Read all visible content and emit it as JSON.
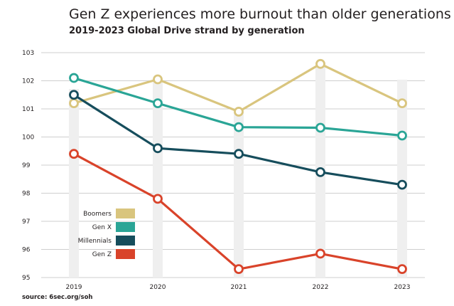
{
  "chart_data": {
    "type": "line",
    "title": "Gen Z experiences more burnout than older generations",
    "subtitle": "2019-2023 Global Drive strand by generation",
    "source": "source: 6sec.org/soh",
    "categories": [
      "2019",
      "2020",
      "2021",
      "2022",
      "2023"
    ],
    "ylim": [
      95,
      103
    ],
    "yticks": [
      "95",
      "96",
      "97",
      "98",
      "99",
      "100",
      "101",
      "102",
      "103"
    ],
    "grid": true,
    "legend_placement": "lower-left",
    "series": [
      {
        "name": "Boomers",
        "color": "#d9c57e",
        "values": [
          101.2,
          102.05,
          100.9,
          102.6,
          101.2
        ]
      },
      {
        "name": "Gen X",
        "color": "#2aa596",
        "values": [
          102.1,
          101.2,
          100.35,
          100.33,
          100.05
        ]
      },
      {
        "name": "Millennials",
        "color": "#164d5c",
        "values": [
          101.5,
          99.6,
          99.4,
          98.75,
          98.3
        ]
      },
      {
        "name": "Gen Z",
        "color": "#d9432a",
        "values": [
          99.4,
          97.8,
          95.3,
          95.85,
          95.3
        ]
      }
    ]
  }
}
